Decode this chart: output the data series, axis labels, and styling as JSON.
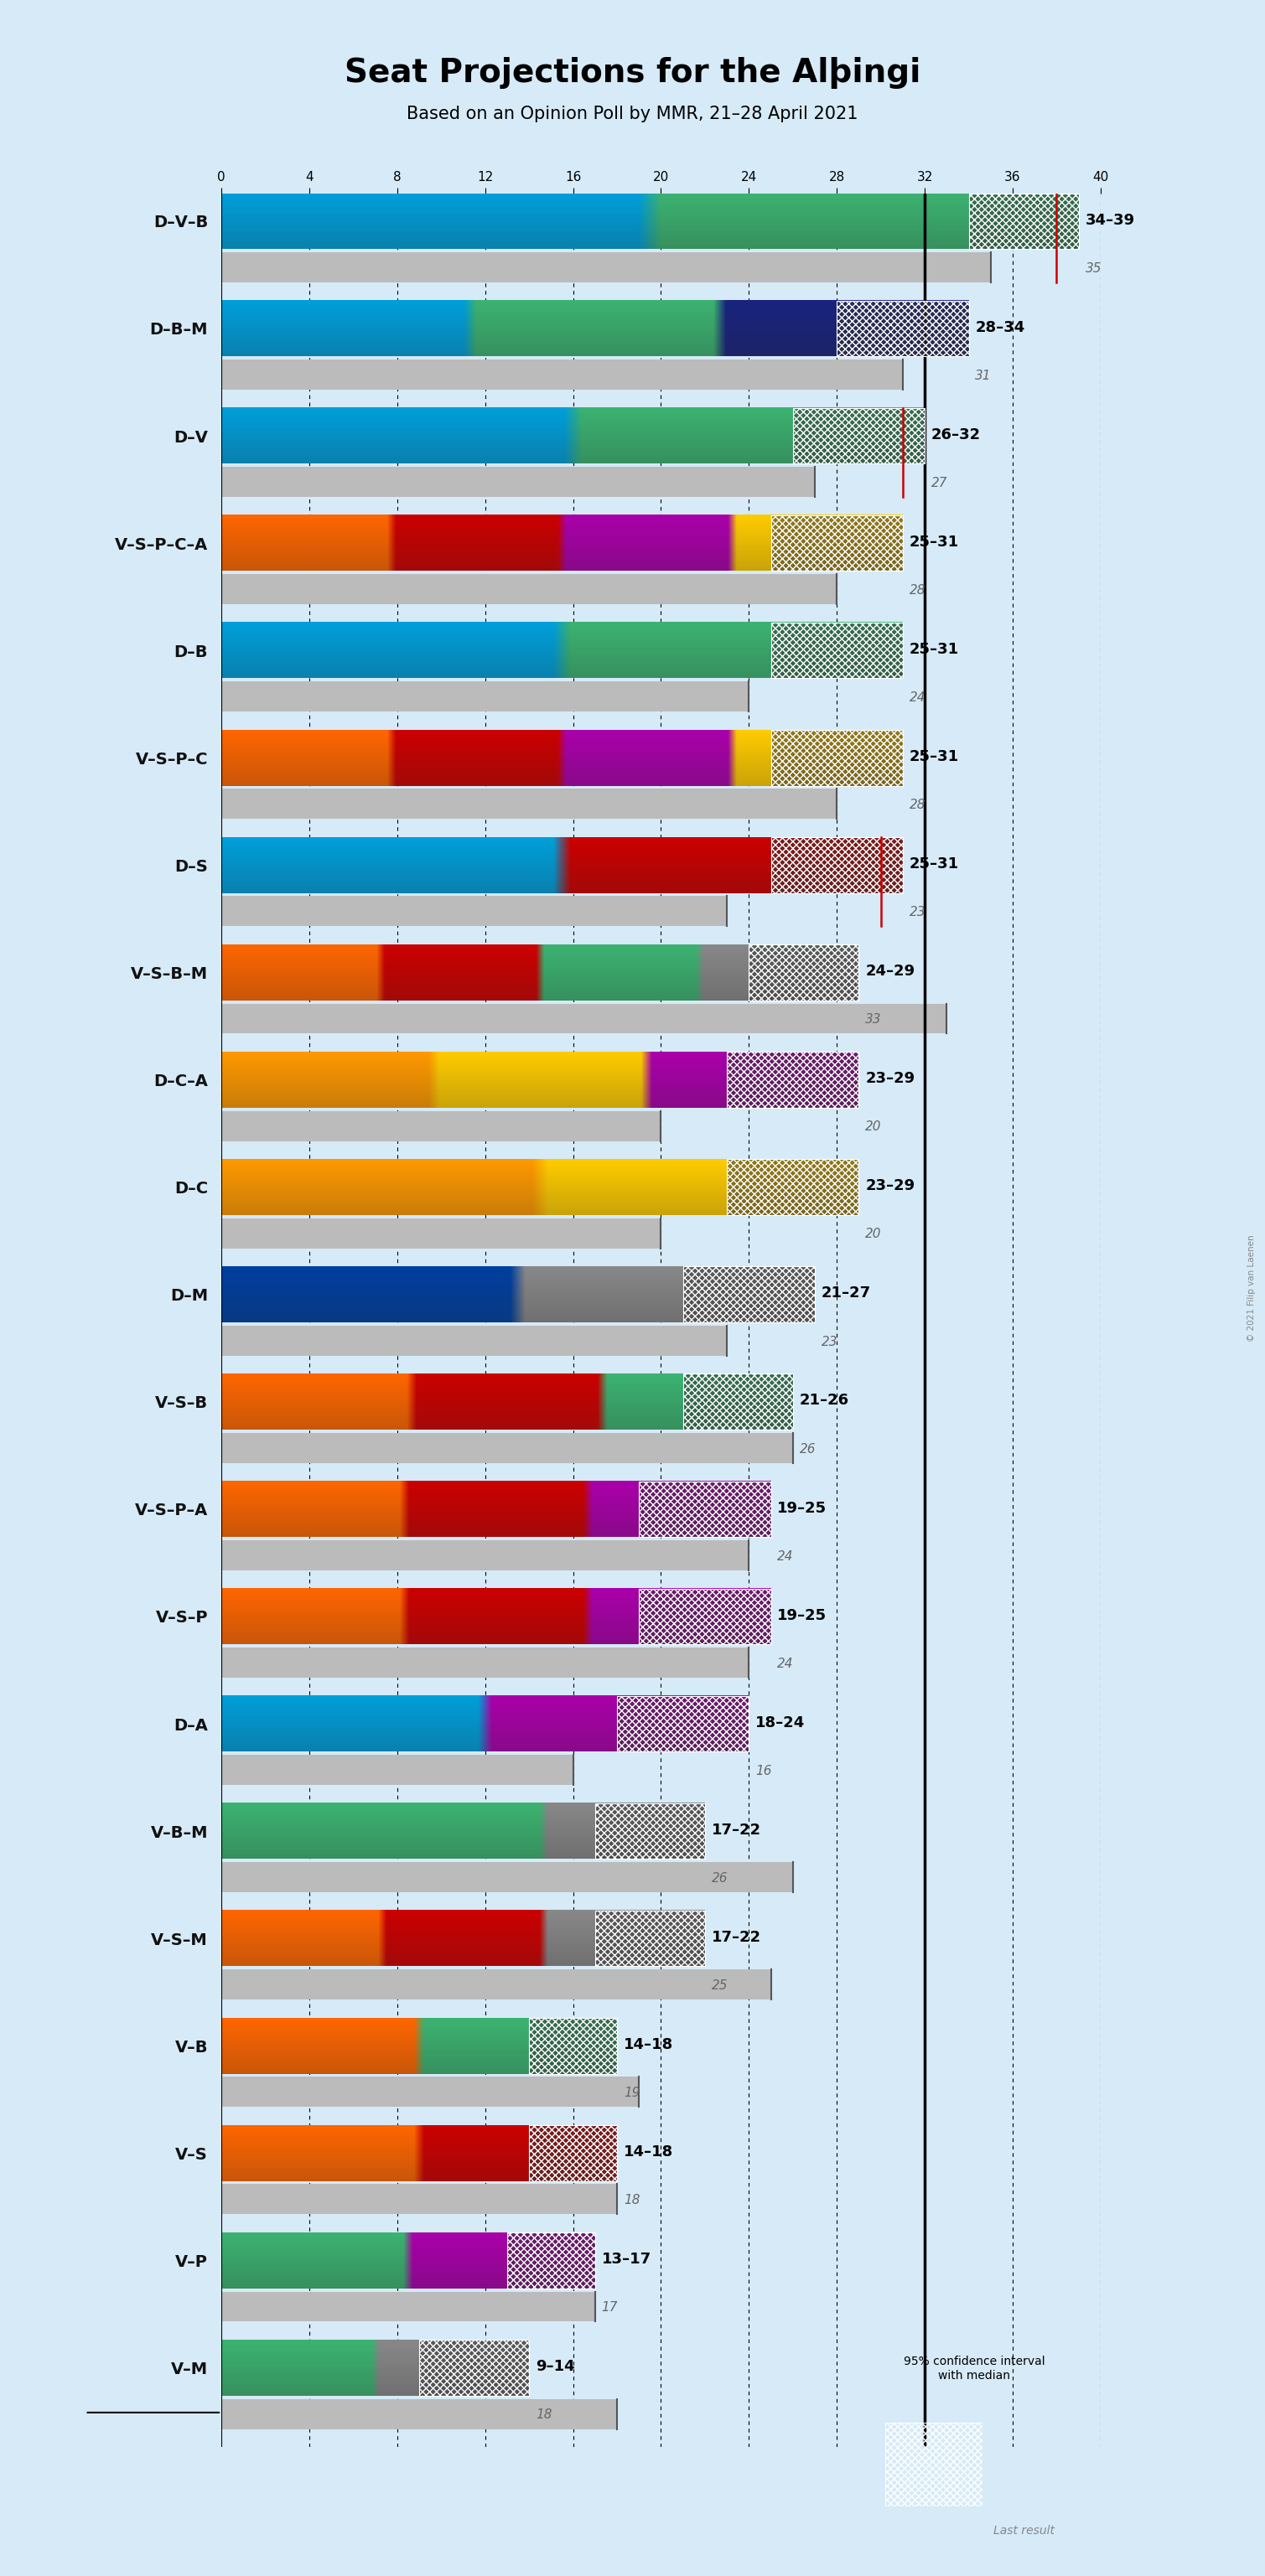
{
  "title": "Seat Projections for the Alþingi",
  "subtitle": "Based on an Opinion Poll by MMR, 21–28 April 2021",
  "copyright": "© 2021 Filip van Laenen",
  "background_color": "#d6eaf8",
  "majority_line": 32,
  "axis_max": 40,
  "tick_positions": [
    0,
    4,
    8,
    12,
    16,
    20,
    24,
    28,
    32,
    36,
    40
  ],
  "coalitions": [
    {
      "name": "D–V–B",
      "underline": true,
      "low": 34,
      "high": 39,
      "median": 35,
      "last": 35,
      "red_line": 38,
      "colors": [
        "#009fda",
        "#3cb371"
      ]
    },
    {
      "name": "D–B–M",
      "underline": false,
      "low": 28,
      "high": 34,
      "median": 31,
      "last": 31,
      "red_line": null,
      "colors": [
        "#009fda",
        "#3cb371",
        "#1a237e"
      ]
    },
    {
      "name": "D–V",
      "underline": false,
      "low": 26,
      "high": 32,
      "median": 27,
      "last": 27,
      "red_line": 31,
      "colors": [
        "#009fda",
        "#3cb371"
      ]
    },
    {
      "name": "V–S–P–C–A",
      "underline": false,
      "low": 25,
      "high": 31,
      "median": 28,
      "last": 28,
      "red_line": null,
      "colors": [
        "#ff6600",
        "#cc0000",
        "#aa00aa",
        "#ffcc00"
      ]
    },
    {
      "name": "D–B",
      "underline": false,
      "low": 25,
      "high": 31,
      "median": 24,
      "last": 24,
      "red_line": null,
      "colors": [
        "#009fda",
        "#3cb371"
      ]
    },
    {
      "name": "V–S–P–C",
      "underline": false,
      "low": 25,
      "high": 31,
      "median": 28,
      "last": 28,
      "red_line": null,
      "colors": [
        "#ff6600",
        "#cc0000",
        "#aa00aa",
        "#ffcc00"
      ]
    },
    {
      "name": "D–S",
      "underline": false,
      "low": 25,
      "high": 31,
      "median": 23,
      "last": 23,
      "red_line": 30,
      "colors": [
        "#009fda",
        "#cc0000"
      ]
    },
    {
      "name": "V–S–B–M",
      "underline": false,
      "low": 24,
      "high": 29,
      "median": 33,
      "last": 33,
      "red_line": null,
      "colors": [
        "#ff6600",
        "#cc0000",
        "#3cb371",
        "#888888"
      ]
    },
    {
      "name": "D–C–A",
      "underline": false,
      "low": 23,
      "high": 29,
      "median": 20,
      "last": 20,
      "red_line": null,
      "colors": [
        "#ff9900",
        "#ffcc00",
        "#aa00aa"
      ]
    },
    {
      "name": "D–C",
      "underline": false,
      "low": 23,
      "high": 29,
      "median": 20,
      "last": 20,
      "red_line": null,
      "colors": [
        "#ff9900",
        "#ffcc00"
      ]
    },
    {
      "name": "D–M",
      "underline": false,
      "low": 21,
      "high": 27,
      "median": 23,
      "last": 23,
      "red_line": null,
      "colors": [
        "#003fa0",
        "#888888"
      ]
    },
    {
      "name": "V–S–B",
      "underline": false,
      "low": 21,
      "high": 26,
      "median": 26,
      "last": 26,
      "red_line": null,
      "colors": [
        "#ff6600",
        "#cc0000",
        "#3cb371"
      ]
    },
    {
      "name": "V–S–P–A",
      "underline": false,
      "low": 19,
      "high": 25,
      "median": 24,
      "last": 24,
      "red_line": null,
      "colors": [
        "#ff6600",
        "#cc0000",
        "#aa00aa"
      ]
    },
    {
      "name": "V–S–P",
      "underline": false,
      "low": 19,
      "high": 25,
      "median": 24,
      "last": 24,
      "red_line": null,
      "colors": [
        "#ff6600",
        "#cc0000",
        "#aa00aa"
      ]
    },
    {
      "name": "D–A",
      "underline": false,
      "low": 18,
      "high": 24,
      "median": 16,
      "last": 16,
      "red_line": null,
      "colors": [
        "#009fda",
        "#aa00aa"
      ]
    },
    {
      "name": "V–B–M",
      "underline": false,
      "low": 17,
      "high": 22,
      "median": 26,
      "last": 26,
      "red_line": null,
      "colors": [
        "#3cb371",
        "#3cb371",
        "#888888"
      ]
    },
    {
      "name": "V–S–M",
      "underline": false,
      "low": 17,
      "high": 22,
      "median": 25,
      "last": 25,
      "red_line": null,
      "colors": [
        "#ff6600",
        "#cc0000",
        "#888888"
      ]
    },
    {
      "name": "V–B",
      "underline": false,
      "low": 14,
      "high": 18,
      "median": 19,
      "last": 19,
      "red_line": null,
      "colors": [
        "#ff6600",
        "#3cb371"
      ]
    },
    {
      "name": "V–S",
      "underline": false,
      "low": 14,
      "high": 18,
      "median": 18,
      "last": 18,
      "red_line": null,
      "colors": [
        "#ff6600",
        "#cc0000"
      ]
    },
    {
      "name": "V–P",
      "underline": false,
      "low": 13,
      "high": 17,
      "median": 17,
      "last": 17,
      "red_line": null,
      "colors": [
        "#3cb371",
        "#aa00aa"
      ]
    },
    {
      "name": "V–M",
      "underline": false,
      "low": 9,
      "high": 14,
      "median": 18,
      "last": 18,
      "red_line": null,
      "colors": [
        "#3cb371",
        "#888888"
      ]
    }
  ]
}
